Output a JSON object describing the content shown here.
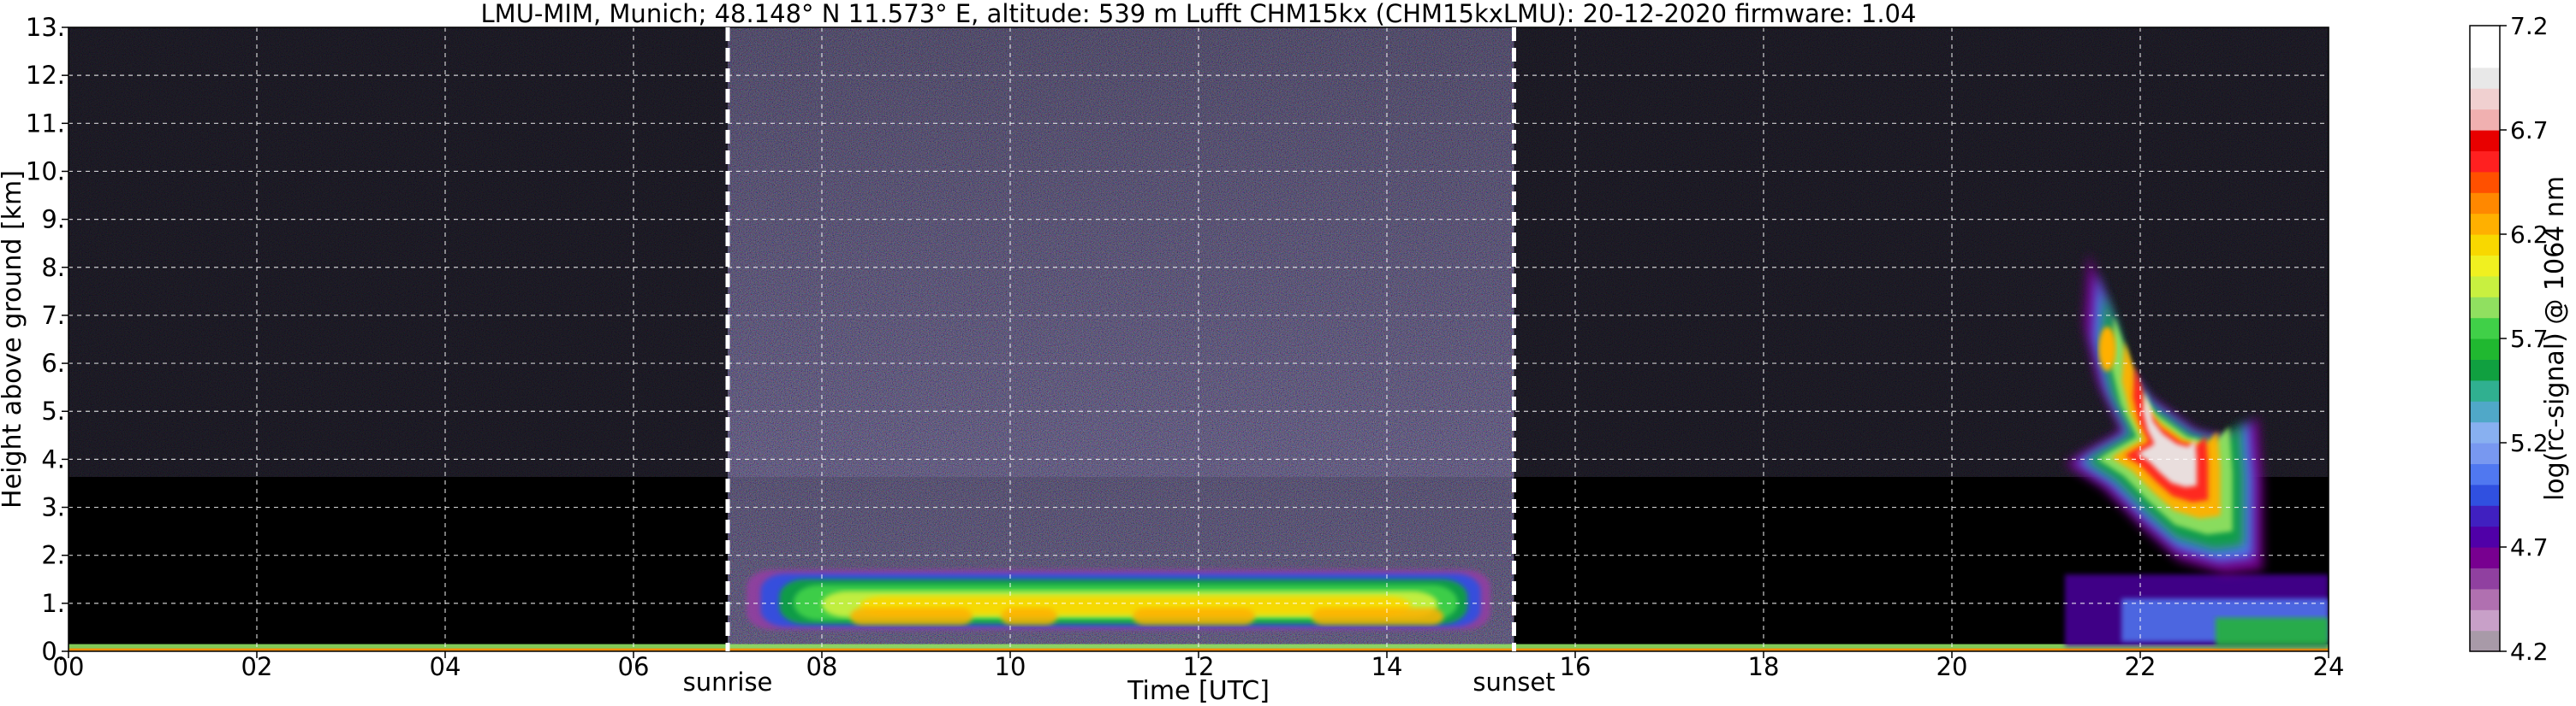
{
  "chart_data": {
    "type": "heatmap",
    "title": "LMU-MIM, Munich; 48.148° N 11.573° E, altitude: 539 m    Lufft CHM15kx (CHM15kxLMU): 20-12-2020    firmware: 1.04",
    "xlabel": "Time [UTC]",
    "ylabel": "Height above ground [km]",
    "xlim": [
      0,
      24
    ],
    "ylim": [
      0,
      13
    ],
    "x_ticks": [
      0,
      2,
      4,
      6,
      8,
      10,
      12,
      14,
      16,
      18,
      20,
      22,
      24
    ],
    "x_tick_labels": [
      "00",
      "02",
      "04",
      "06",
      "08",
      "10",
      "12",
      "14",
      "16",
      "18",
      "20",
      "22",
      "24"
    ],
    "y_ticks": [
      0,
      1,
      2,
      3,
      4,
      5,
      6,
      7,
      8,
      9,
      10,
      11,
      12,
      13
    ],
    "y_tick_labels": [
      "0.",
      "1.",
      "2.",
      "3.",
      "4.",
      "5.",
      "6.",
      "7.",
      "8.",
      "9.",
      "10.",
      "11.",
      "12.",
      "13."
    ],
    "grid": true,
    "background": "#000000",
    "markers": [
      {
        "label": "sunrise",
        "x": 7.0
      },
      {
        "label": "sunset",
        "x": 15.35
      }
    ],
    "colorbar": {
      "label": "log(rc-signal) @ 1064 nm",
      "min": 4.2,
      "max": 7.2,
      "tick_values": [
        4.2,
        4.7,
        5.2,
        5.7,
        6.2,
        6.7,
        7.2
      ],
      "tick_labels": [
        "4.2",
        "4.7",
        "5.2",
        "5.7",
        "6.2",
        "6.7",
        "7.2"
      ],
      "colors": [
        "#a89aa8",
        "#c8a0c8",
        "#b070b0",
        "#9040a0",
        "#780090",
        "#5000a8",
        "#4020c0",
        "#3050e0",
        "#5078f0",
        "#7898f0",
        "#88b0f0",
        "#50a8c8",
        "#30b090",
        "#10a040",
        "#20b830",
        "#40d048",
        "#90e060",
        "#c8f040",
        "#f0f020",
        "#f8d800",
        "#ffb000",
        "#ff8800",
        "#ff5000",
        "#ff2020",
        "#e80000",
        "#f0b0b0",
        "#f0d0d0",
        "#e8e8e8",
        "#ffffff",
        "#ffffff"
      ]
    },
    "features": [
      {
        "name": "boundary layer aerosol",
        "x": [
          7.2,
          15.1
        ],
        "y": [
          0.45,
          1.7
        ],
        "level_max": 6.4
      },
      {
        "name": "daytime background noise",
        "x": [
          7.0,
          15.35
        ],
        "y": [
          0.0,
          13.0
        ],
        "level_max": 5.3
      },
      {
        "name": "cloud",
        "x": [
          21.2,
          23.3
        ],
        "y": [
          1.5,
          8.5
        ],
        "level_max": 7.2
      },
      {
        "name": "near-ground layer",
        "x": [
          0,
          24
        ],
        "y": [
          0.0,
          0.15
        ],
        "level_max": 6.0
      }
    ]
  }
}
